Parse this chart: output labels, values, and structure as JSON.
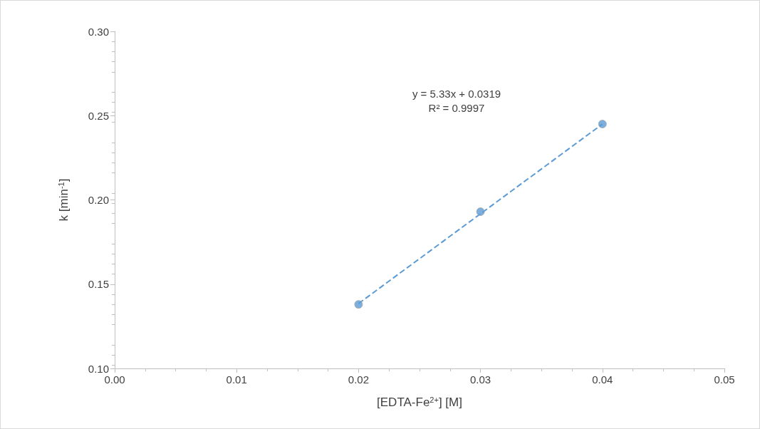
{
  "chart_data": {
    "type": "scatter",
    "xlabel": "[EDTA-Fe$^{2+}$] [M]",
    "ylabel": "k [min$^{-1}$]",
    "xlim": [
      0,
      0.05
    ],
    "ylim": [
      0.1,
      0.3
    ],
    "xticks": [
      {
        "value": 0,
        "label": "0.00"
      },
      {
        "value": 0.01,
        "label": "0.01"
      },
      {
        "value": 0.02,
        "label": "0.02"
      },
      {
        "value": 0.03,
        "label": "0.03"
      },
      {
        "value": 0.04,
        "label": "0.04"
      },
      {
        "value": 0.05,
        "label": "0.05"
      }
    ],
    "yticks": [
      {
        "value": 0.1,
        "label": "0.10"
      },
      {
        "value": 0.15,
        "label": "0.15"
      },
      {
        "value": 0.2,
        "label": "0.20"
      },
      {
        "value": 0.25,
        "label": "0.25"
      },
      {
        "value": 0.3,
        "label": "0.30"
      }
    ],
    "grid": false,
    "series": [
      {
        "color": "#5b9bd5",
        "marker": "circle",
        "x": [
          0.02,
          0.03,
          0.04
        ],
        "values": [
          0.138,
          0.193,
          0.245
        ]
      },
      {
        "type": "line",
        "color": "#5b9bd5",
        "marker": "none",
        "line_style": "dashed",
        "x": [
          0.02,
          0.04
        ],
        "values": [
          0.1385,
          0.245
        ]
      }
    ],
    "annotations": [
      "y = 5.33x + 0.0319",
      "R² = 0.9997"
    ]
  }
}
